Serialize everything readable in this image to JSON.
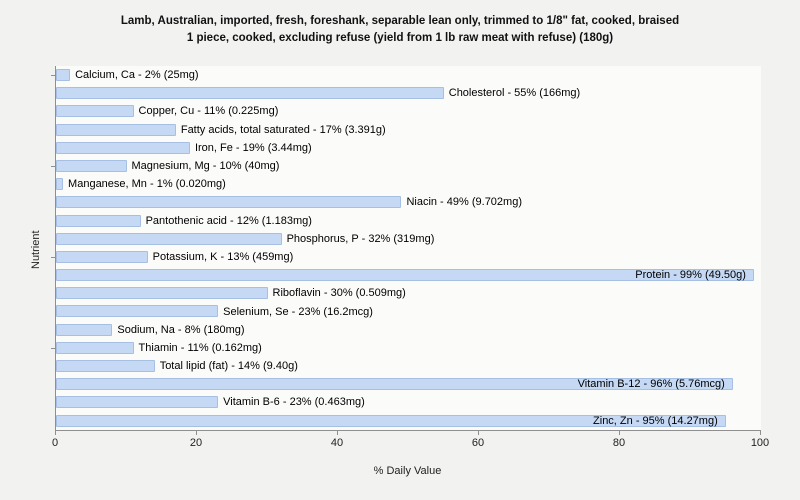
{
  "title_line1": "Lamb, Australian, imported, fresh, foreshank, separable lean only, trimmed to 1/8\" fat, cooked, braised",
  "title_line2": "1 piece, cooked, excluding refuse (yield from 1 lb raw meat with refuse) (180g)",
  "colors": {
    "bar_fill": "#c5d9f4",
    "bar_border": "#a6bfe2",
    "background": "#f2f2f1",
    "plot_background": "#fbfbfa",
    "axis": "#8f8f8f"
  },
  "chart_data": {
    "type": "bar",
    "orientation": "horizontal",
    "title": "Lamb, Australian, imported, fresh, foreshank, separable lean only, trimmed to 1/8\" fat, cooked, braised 1 piece, cooked, excluding refuse (yield from 1 lb raw meat with refuse) (180g)",
    "xlabel": "% Daily Value",
    "ylabel": "Nutrient",
    "xlim": [
      0,
      100
    ],
    "xticks": [
      0,
      20,
      40,
      60,
      80,
      100
    ],
    "grid": false,
    "legend": false,
    "categories": [
      "Calcium, Ca",
      "Cholesterol",
      "Copper, Cu",
      "Fatty acids, total saturated",
      "Iron, Fe",
      "Magnesium, Mg",
      "Manganese, Mn",
      "Niacin",
      "Pantothenic acid",
      "Phosphorus, P",
      "Potassium, K",
      "Protein",
      "Riboflavin",
      "Selenium, Se",
      "Sodium, Na",
      "Thiamin",
      "Total lipid (fat)",
      "Vitamin B-12",
      "Vitamin B-6",
      "Zinc, Zn"
    ],
    "values": [
      2,
      55,
      11,
      17,
      19,
      10,
      1,
      49,
      12,
      32,
      13,
      99,
      30,
      23,
      8,
      11,
      14,
      96,
      23,
      95
    ],
    "amounts": [
      "25mg",
      "166mg",
      "0.225mg",
      "3.391g",
      "3.44mg",
      "40mg",
      "0.020mg",
      "9.702mg",
      "1.183mg",
      "319mg",
      "459mg",
      "49.50g",
      "0.509mg",
      "16.2mcg",
      "180mg",
      "0.162mg",
      "9.40g",
      "5.76mcg",
      "0.463mg",
      "14.27mg"
    ],
    "labels": [
      "Calcium, Ca - 2% (25mg)",
      "Cholesterol - 55% (166mg)",
      "Copper, Cu - 11% (0.225mg)",
      "Fatty acids, total saturated - 17% (3.391g)",
      "Iron, Fe - 19% (3.44mg)",
      "Magnesium, Mg - 10% (40mg)",
      "Manganese, Mn - 1% (0.020mg)",
      "Niacin - 49% (9.702mg)",
      "Pantothenic acid - 12% (1.183mg)",
      "Phosphorus, P - 32% (319mg)",
      "Potassium, K - 13% (459mg)",
      "Protein - 99% (49.50g)",
      "Riboflavin - 30% (0.509mg)",
      "Selenium, Se - 23% (16.2mcg)",
      "Sodium, Na - 8% (180mg)",
      "Thiamin - 11% (0.162mg)",
      "Total lipid (fat) - 14% (9.40g)",
      "Vitamin B-12 - 96% (5.76mcg)",
      "Vitamin B-6 - 23% (0.463mg)",
      "Zinc, Zn - 95% (14.27mg)"
    ],
    "y_tick_rows": [
      0,
      5,
      10,
      15
    ]
  }
}
